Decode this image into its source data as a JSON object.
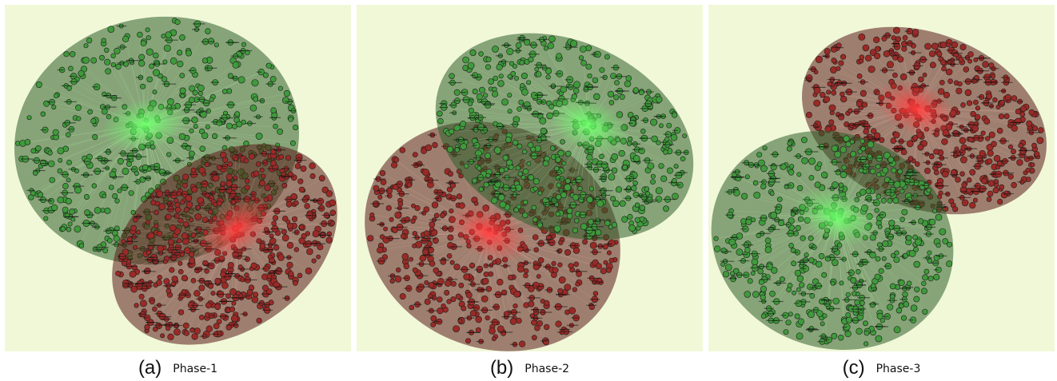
{
  "figure": {
    "background_color": "#f1f8d8",
    "node_colors": {
      "green": "#3f9a3b",
      "red": "#9a2a26",
      "outline": "#1c1c1c"
    },
    "hub_colors": {
      "green": "#6cff6a",
      "red": "#ff3b3b"
    },
    "panels": [
      {
        "letter": "(a)",
        "phase": "Phase-1",
        "clusters": [
          {
            "community": "green",
            "hub_size": "large"
          },
          {
            "community": "red",
            "hub_size": "large"
          }
        ]
      },
      {
        "letter": "(b)",
        "phase": "Phase-2",
        "clusters": [
          {
            "community": "red",
            "hub_size": "large"
          },
          {
            "community": "green",
            "hub_size": "large"
          }
        ]
      },
      {
        "letter": "(c)",
        "phase": "Phase-3",
        "clusters": [
          {
            "community": "red",
            "hub_size": "large"
          },
          {
            "community": "green",
            "hub_size": "large"
          }
        ]
      }
    ]
  }
}
